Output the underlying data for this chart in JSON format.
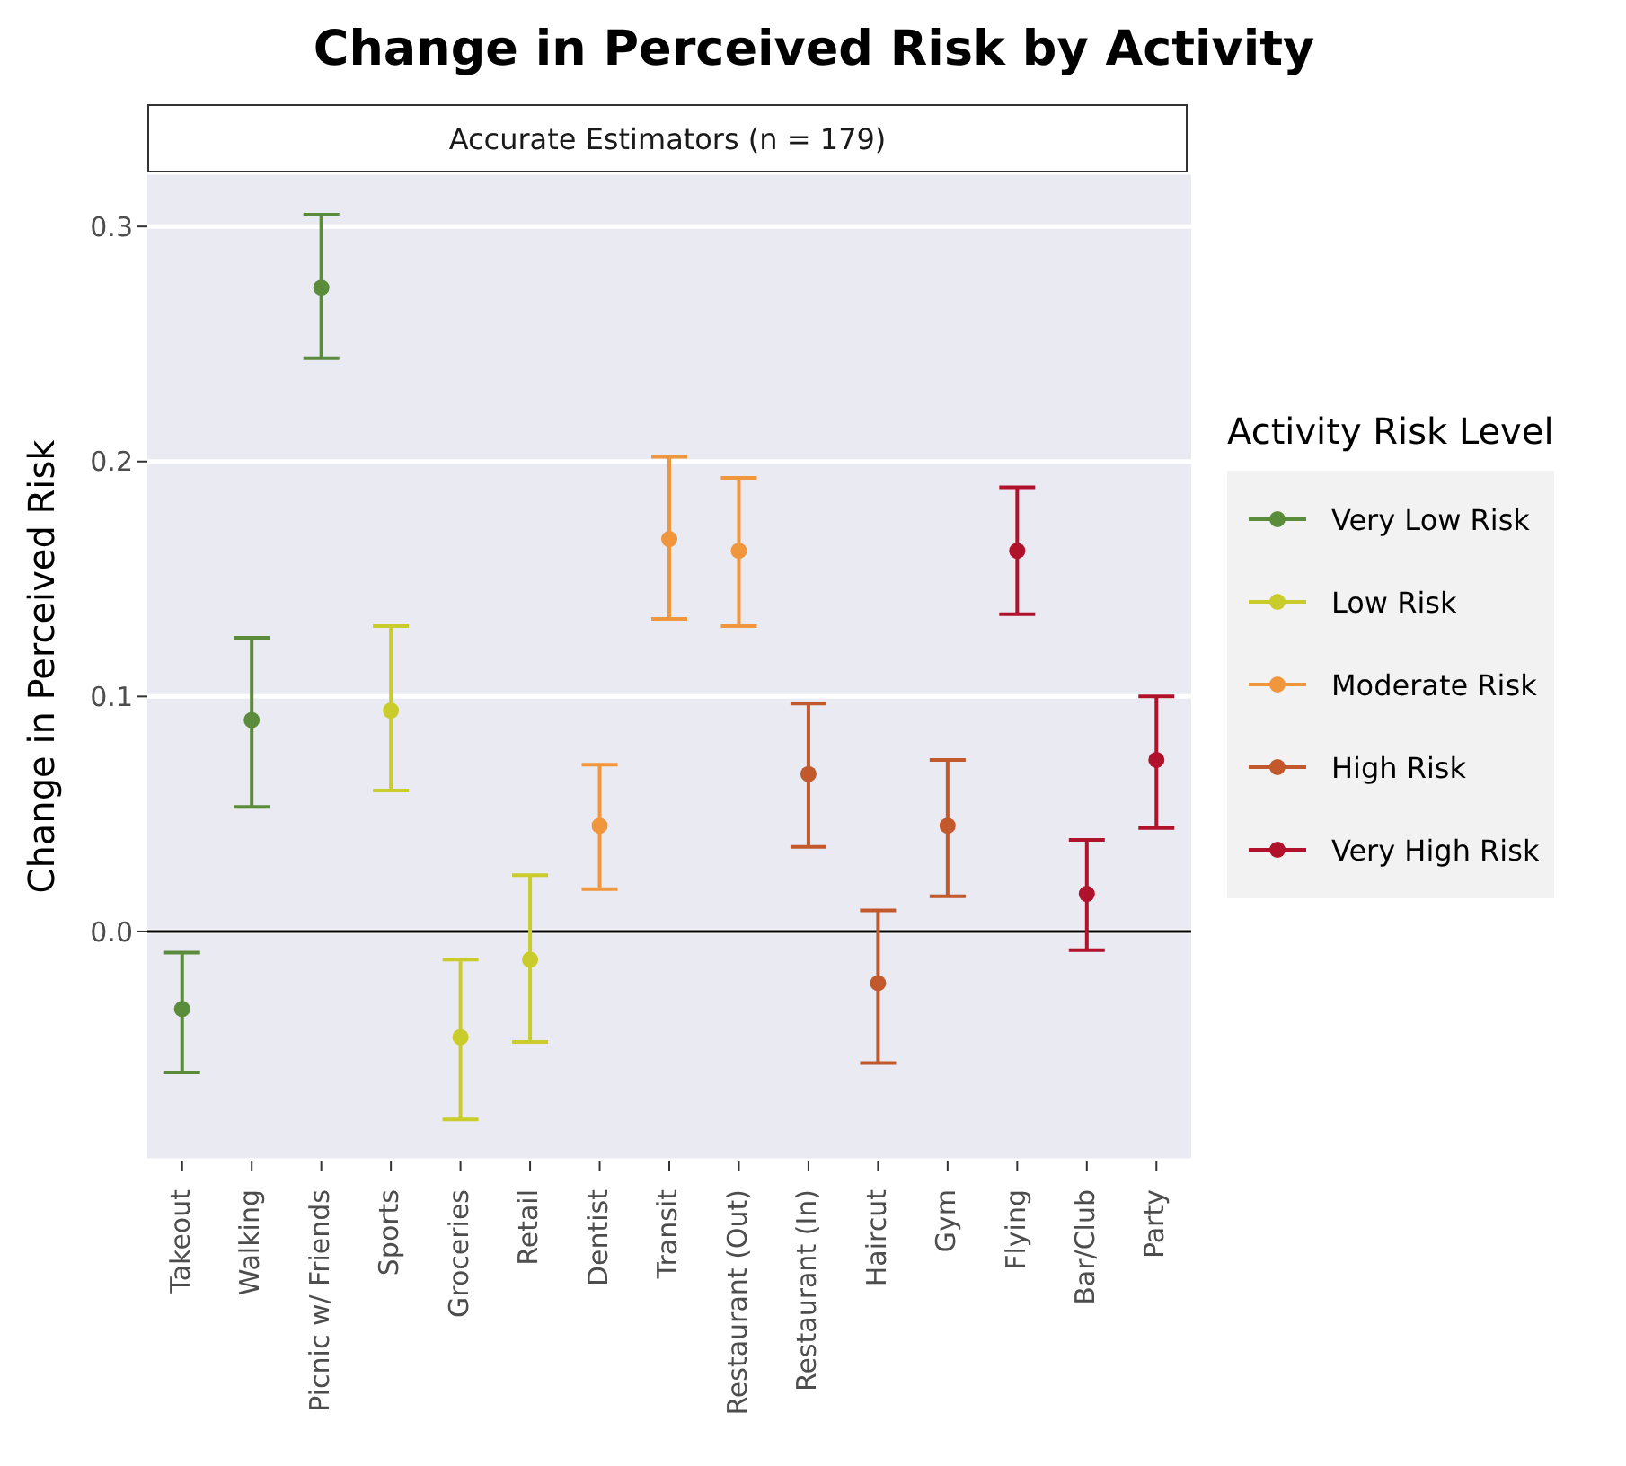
{
  "chart_data": {
    "type": "scatter",
    "title": "Change in Perceived Risk by Activity",
    "subtitle": "Accurate Estimators (n = 179)",
    "ylabel": "Change in Perceived Risk",
    "legend_title": "Activity Risk Level",
    "categories": [
      "Takeout",
      "Walking",
      "Picnic w/ Friends",
      "Sports",
      "Groceries",
      "Retail",
      "Dentist",
      "Transit",
      "Restaurant (Out)",
      "Restaurant (In)",
      "Haircut",
      "Gym",
      "Flying",
      "Bar/Club",
      "Party"
    ],
    "series": [
      {
        "name": "Very Low Risk",
        "color": "#5b8c3b",
        "values": [
          -0.033,
          0.09,
          0.274,
          null,
          null,
          null,
          null,
          null,
          null,
          null,
          null,
          null,
          null,
          null,
          null
        ],
        "errors": [
          [
            -0.06,
            -0.009
          ],
          [
            0.053,
            0.125
          ],
          [
            0.244,
            0.305
          ],
          null,
          null,
          null,
          null,
          null,
          null,
          null,
          null,
          null,
          null,
          null,
          null
        ]
      },
      {
        "name": "Low Risk",
        "color": "#c9cc2a",
        "values": [
          null,
          null,
          null,
          0.094,
          -0.045,
          -0.012,
          null,
          null,
          null,
          null,
          null,
          null,
          null,
          null,
          null
        ],
        "errors": [
          null,
          null,
          null,
          [
            0.06,
            0.13
          ],
          [
            -0.08,
            -0.012
          ],
          [
            -0.047,
            0.024
          ],
          null,
          null,
          null,
          null,
          null,
          null,
          null,
          null,
          null
        ]
      },
      {
        "name": "Moderate Risk",
        "color": "#f0963d",
        "values": [
          null,
          null,
          null,
          null,
          null,
          null,
          0.045,
          0.167,
          0.162,
          null,
          null,
          null,
          null,
          null,
          null
        ],
        "errors": [
          null,
          null,
          null,
          null,
          null,
          null,
          [
            0.018,
            0.071
          ],
          [
            0.133,
            0.202
          ],
          [
            0.13,
            0.193
          ],
          null,
          null,
          null,
          null,
          null,
          null
        ]
      },
      {
        "name": "High Risk",
        "color": "#c2592d",
        "values": [
          null,
          null,
          null,
          null,
          null,
          null,
          null,
          null,
          null,
          0.067,
          -0.022,
          0.045,
          null,
          null,
          null
        ],
        "errors": [
          null,
          null,
          null,
          null,
          null,
          null,
          null,
          null,
          null,
          [
            0.036,
            0.097
          ],
          [
            -0.056,
            0.009
          ],
          [
            0.015,
            0.073
          ],
          null,
          null,
          null
        ]
      },
      {
        "name": "Very High Risk",
        "color": "#b0112b",
        "values": [
          null,
          null,
          null,
          null,
          null,
          null,
          null,
          null,
          null,
          null,
          null,
          null,
          0.162,
          0.016,
          0.073
        ],
        "errors": [
          null,
          null,
          null,
          null,
          null,
          null,
          null,
          null,
          null,
          null,
          null,
          null,
          [
            0.135,
            0.189
          ],
          [
            -0.008,
            0.039
          ],
          [
            0.044,
            0.1
          ]
        ]
      }
    ],
    "ylim": [
      -0.0975,
      0.323
    ],
    "yticks": [
      {
        "value": 0,
        "label": "0.0"
      },
      0.1,
      0.2,
      0.3
    ],
    "ref_lines": [
      {
        "axis": "y",
        "value": 0,
        "color": "#000000"
      }
    ],
    "grid": "y",
    "legend": "right",
    "marker": "circle"
  }
}
